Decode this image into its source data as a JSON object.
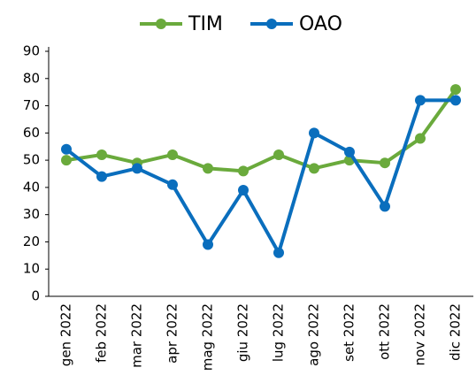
{
  "chart_data": {
    "type": "line",
    "categories": [
      "gen 2022",
      "feb 2022",
      "mar 2022",
      "apr 2022",
      "mag 2022",
      "giu 2022",
      "lug 2022",
      "ago 2022",
      "set 2022",
      "ott 2022",
      "nov 2022",
      "dic 2022"
    ],
    "series": [
      {
        "name": "TIM",
        "color": "#6aaa3c",
        "values": [
          50,
          52,
          49,
          52,
          47,
          46,
          52,
          47,
          50,
          49,
          58,
          76
        ]
      },
      {
        "name": "OAO",
        "color": "#0a6ebd",
        "values": [
          54,
          44,
          47,
          41,
          19,
          39,
          16,
          60,
          53,
          33,
          72,
          72
        ]
      }
    ],
    "ylim": [
      0,
      90
    ],
    "yticks": [
      0,
      10,
      20,
      30,
      40,
      50,
      60,
      70,
      80,
      90
    ],
    "legend": "top"
  }
}
